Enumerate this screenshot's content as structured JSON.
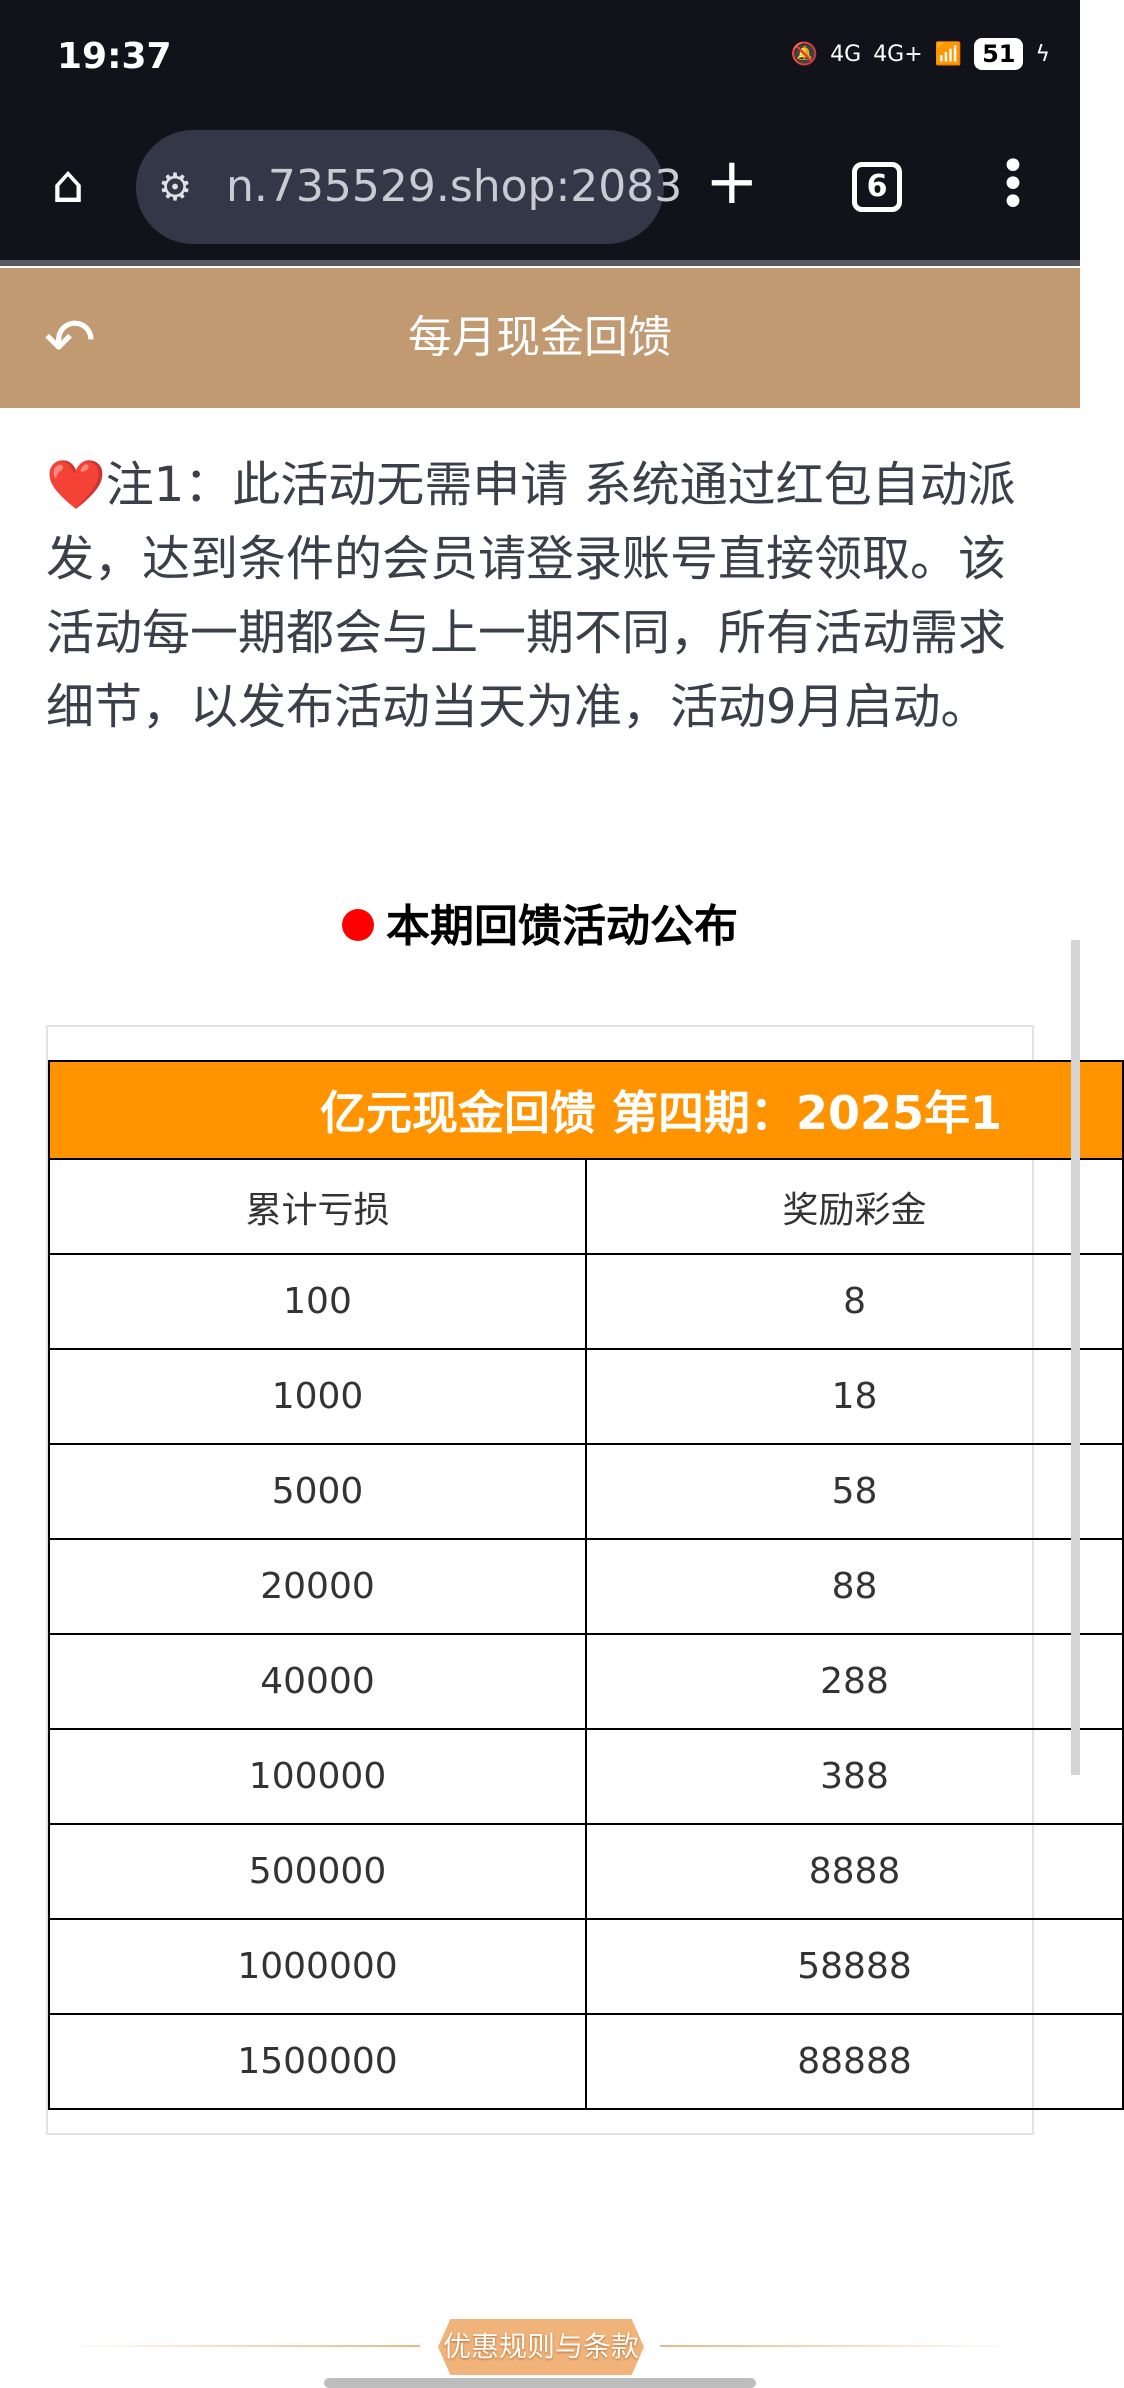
{
  "status": {
    "time": "19:37",
    "net1": "4G",
    "net2": "4G+",
    "battery": "51"
  },
  "browser": {
    "url": "n.735529.shop:2083",
    "tab_count": "6"
  },
  "header": {
    "title": "每月现金回馈"
  },
  "note": "❤️注1：此活动无需申请 系统通过红包自动派发，达到条件的会员请登录账号直接领取。该活动每一期都会与上一期不同，所有活动需求细节，以发布活动当天为准，活动9月启动。",
  "section_title": "本期回馈活动公布",
  "table": {
    "title": "亿元现金回馈 第四期：2025年1",
    "headers": [
      "累计亏损",
      "奖励彩金"
    ],
    "rows": [
      [
        "100",
        "8"
      ],
      [
        "1000",
        "18"
      ],
      [
        "5000",
        "58"
      ],
      [
        "20000",
        "88"
      ],
      [
        "40000",
        "288"
      ],
      [
        "100000",
        "388"
      ],
      [
        "500000",
        "8888"
      ],
      [
        "1000000",
        "58888"
      ],
      [
        "1500000",
        "88888"
      ]
    ]
  },
  "footer": {
    "banner": "优惠规则与条款"
  },
  "colors": {
    "header": "#c19a72",
    "table_title": "#ff9400",
    "dot": "#ff0000"
  }
}
